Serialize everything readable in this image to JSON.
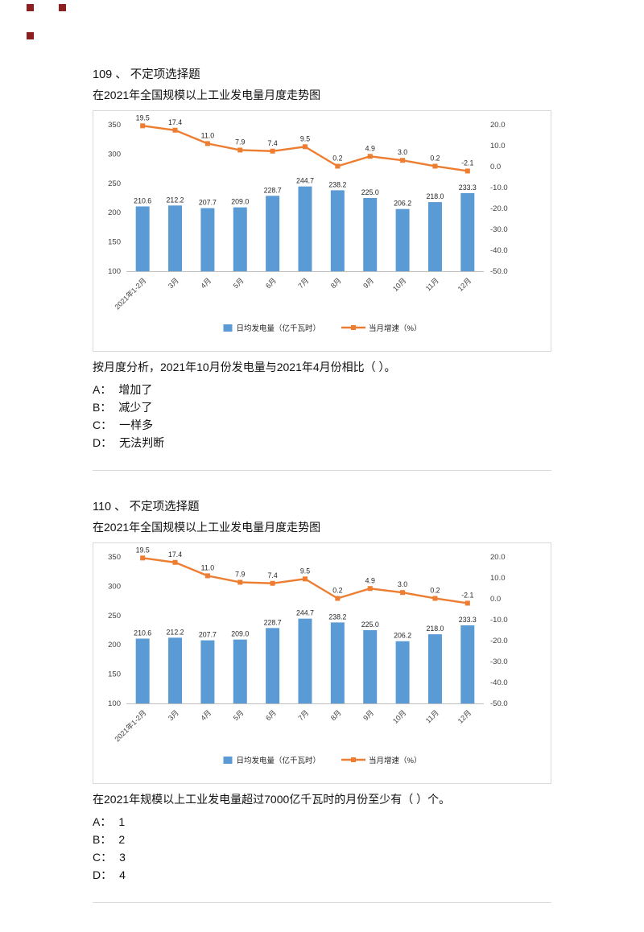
{
  "page": {
    "marker_color": "#8c1f1f"
  },
  "questions": [
    {
      "header": "109 、 不定项选择题",
      "intro": "在2021年全国规模以上工业发电量月度走势图",
      "question": "按月度分析，2021年10月份发电量与2021年4月份相比（ ）。",
      "options": [
        {
          "label": "A：",
          "text": "增加了"
        },
        {
          "label": "B：",
          "text": "减少了"
        },
        {
          "label": "C：",
          "text": "一样多"
        },
        {
          "label": "D：",
          "text": "无法判断"
        }
      ]
    },
    {
      "header": "110 、 不定项选择题",
      "intro": "在2021年全国规模以上工业发电量月度走势图",
      "question": "在2021年规模以上工业发电量超过7000亿千瓦时的月份至少有（ ）个。",
      "options": [
        {
          "label": "A：",
          "text": "1"
        },
        {
          "label": "B：",
          "text": "2"
        },
        {
          "label": "C：",
          "text": "3"
        },
        {
          "label": "D：",
          "text": "4"
        }
      ]
    }
  ],
  "chart_data": {
    "type": "combo-bar-line",
    "title": "",
    "categories": [
      "2021年1-2月",
      "3月",
      "4月",
      "5月",
      "6月",
      "7月",
      "8月",
      "9月",
      "10月",
      "11月",
      "12月"
    ],
    "series": [
      {
        "name": "日均发电量（亿千瓦时）",
        "type": "bar",
        "axis": "left",
        "color": "#5B9BD5",
        "values": [
          210.6,
          212.2,
          207.7,
          209.0,
          228.7,
          244.7,
          238.2,
          225.0,
          206.2,
          218.0,
          233.3
        ]
      },
      {
        "name": "当月增速（%）",
        "type": "line",
        "axis": "right",
        "color": "#ED7D31",
        "values": [
          19.5,
          17.4,
          11.0,
          7.9,
          7.4,
          9.5,
          0.2,
          4.9,
          3.0,
          0.2,
          -2.1
        ]
      }
    ],
    "left_axis": {
      "min": 100,
      "max": 350,
      "ticks": [
        350,
        300,
        250,
        200,
        150,
        100
      ]
    },
    "right_axis": {
      "min": -50,
      "max": 20,
      "ticks": [
        20.0,
        10.0,
        0.0,
        -10.0,
        -20.0,
        -30.0,
        -40.0,
        -50.0
      ]
    },
    "legend_position": "bottom",
    "grid": false
  }
}
